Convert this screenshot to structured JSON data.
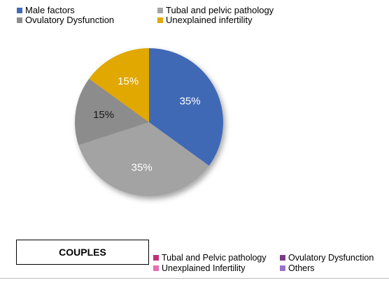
{
  "chart_data": {
    "type": "pie",
    "slices": [
      {
        "name": "Male factors",
        "value": 35,
        "label": "35%",
        "color": "#4169B5"
      },
      {
        "name": "Tubal and pelvic pathology",
        "value": 35,
        "label": "35%",
        "color": "#A3A3A3"
      },
      {
        "name": "Ovulatory Dysfunction",
        "value": 15,
        "label": "15%",
        "color": "#8C8C8C"
      },
      {
        "name": "Unexplained infertility",
        "value": 15,
        "label": "15%",
        "color": "#E0A800"
      }
    ],
    "legend_placement": "top-left"
  },
  "box": {
    "title": "COUPLES"
  },
  "legend2": [
    {
      "label": "Tubal and Pelvic pathology",
      "color": "#C0307A"
    },
    {
      "label": "Ovulatory Dysfunction",
      "color": "#7A3A86"
    },
    {
      "label": "Unexplained Infertility",
      "color": "#E36FB8"
    },
    {
      "label": "Others",
      "color": "#9A72C9"
    }
  ]
}
